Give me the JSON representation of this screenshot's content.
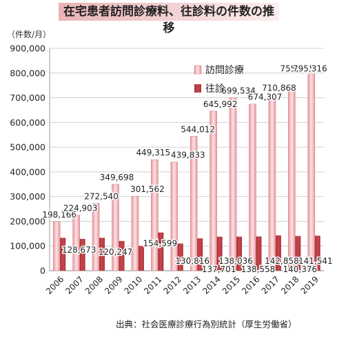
{
  "title": "在宅患者訪問診療料、往診料の件数の推移",
  "unit": "（件数/月）",
  "source": "出典：社会医療診療行為別統計（厚生労働省）",
  "colors": {
    "visit": "#e8969c",
    "visit_light": "#fbe4e6",
    "house_call": "#c9474e",
    "house_call_dark": "#a8333a",
    "grid": "#d0d0d0",
    "banner": "#e9b4b6"
  },
  "chart_data": {
    "type": "bar",
    "categories": [
      "2006",
      "2007",
      "2008",
      "2009",
      "2010",
      "2011",
      "2012",
      "2013",
      "2014",
      "2015",
      "2016",
      "2017",
      "2018",
      "2019"
    ],
    "series": [
      {
        "name": "訪問診療",
        "values": [
          198166,
          224903,
          272540,
          349698,
          301562,
          449315,
          439833,
          544012,
          645992,
          699534,
          674307,
          710868,
          755415,
          795316
        ],
        "labels": [
          "198,166",
          "224,903",
          "272,540",
          "349,698",
          "301,562",
          "449,315",
          "439,833",
          "544,012",
          "645,992",
          "699,534",
          "674,307",
          "710,868",
          "755,415",
          "795,316"
        ]
      },
      {
        "name": "往診",
        "values": [
          133000,
          128673,
          133000,
          120247,
          100000,
          154599,
          110000,
          130816,
          137701,
          138036,
          138558,
          142858,
          140376,
          141541
        ],
        "labels": [
          "",
          "128,673",
          "",
          "120,247",
          "",
          "154,599",
          "",
          "130,816",
          "137,701",
          "138,036",
          "138,558",
          "142,858",
          "140,376",
          "141,541"
        ]
      }
    ],
    "yticks": [
      "0",
      "100,000",
      "200,000",
      "300,000",
      "400,000",
      "500,000",
      "600,000",
      "700,000",
      "800,000",
      "900,000"
    ],
    "ylim": [
      0,
      900000
    ],
    "grid": true,
    "legend": "top-right"
  }
}
